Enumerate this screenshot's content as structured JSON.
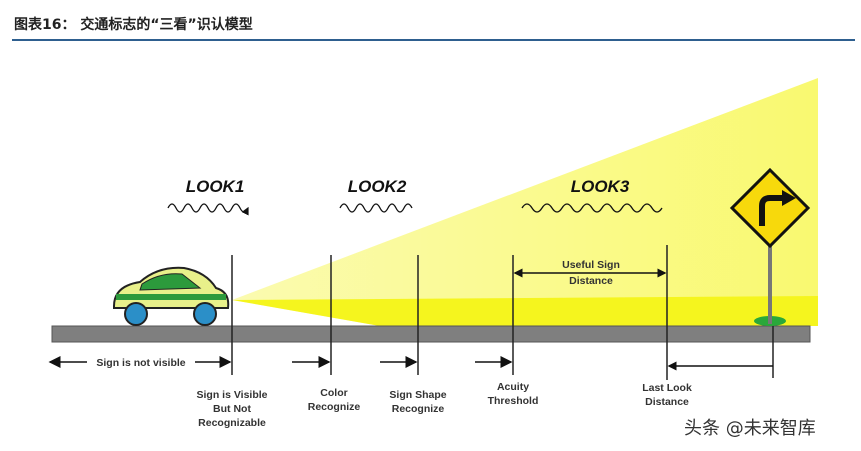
{
  "title": "图表16：  交通标志的“三看”识认模型",
  "looks": [
    "LOOK1",
    "LOOK2",
    "LOOK3"
  ],
  "labels": {
    "not_visible": "Sign is not visible",
    "visible_1": "Sign is Visible",
    "visible_2": "But Not",
    "visible_3": "Recognizable",
    "color_1": "Color",
    "color_2": "Recognize",
    "shape_1": "Sign Shape",
    "shape_2": "Recognize",
    "acuity_1": "Acuity",
    "acuity_2": "Threshold",
    "useful_1": "Useful Sign",
    "useful_2": "Distance",
    "last_1": "Last Look",
    "last_2": "Distance"
  },
  "watermark": "头条 @未来智库",
  "colors": {
    "cone": "#fbfb8c",
    "cone_bright": "#f5f51e",
    "road": "#7f7f7f",
    "sign": "#f7d90c",
    "car_body": "#e8f08a",
    "car_stripe": "#2c9a3c",
    "wheel": "#2b8fc8",
    "rule": "#2e5f8f"
  },
  "icons": [
    "car-icon",
    "turn-right-sign-icon",
    "wave-icon"
  ]
}
